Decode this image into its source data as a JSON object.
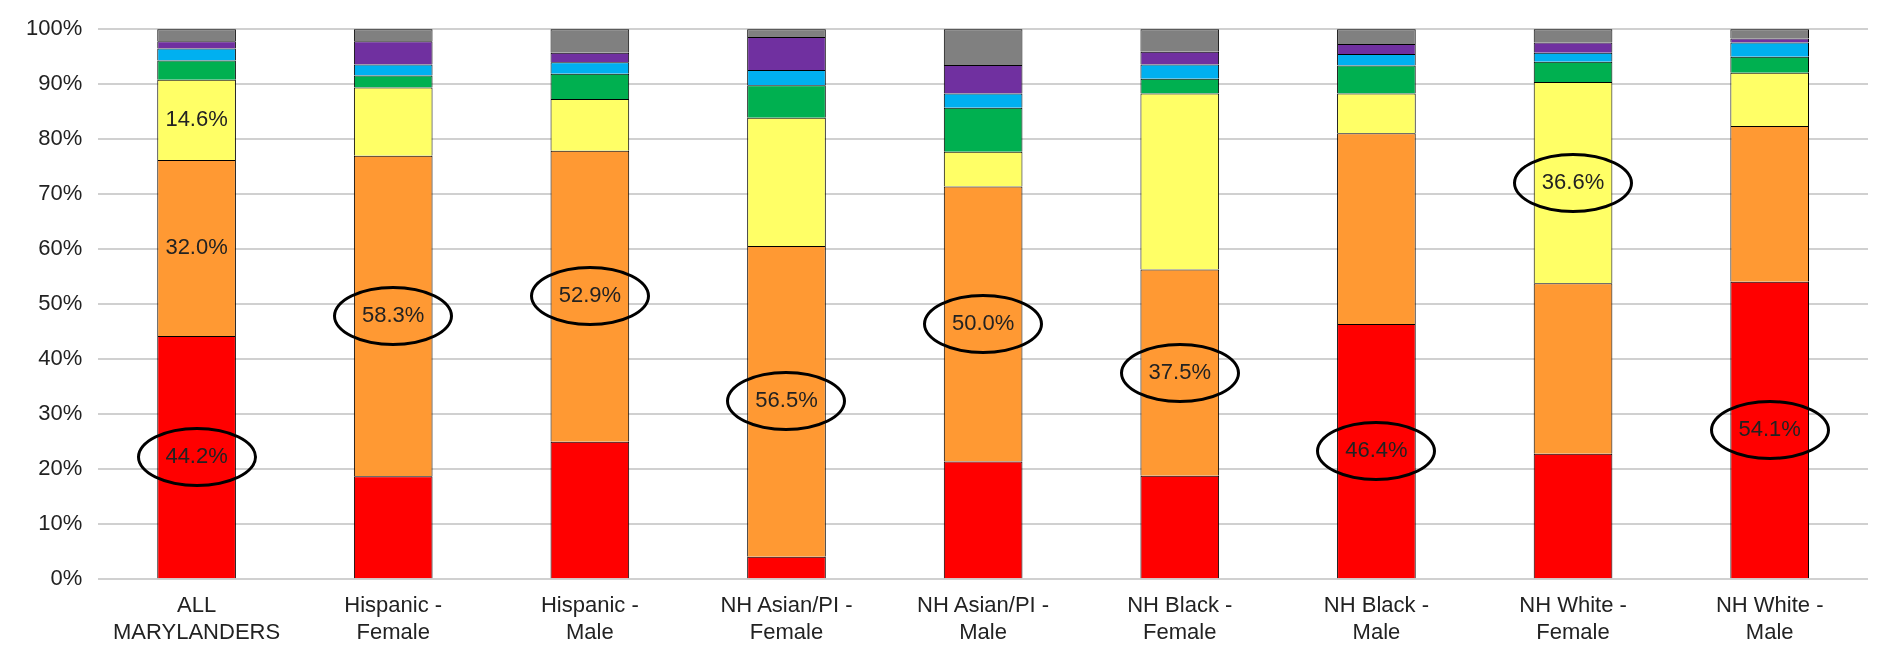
{
  "chart_data": {
    "type": "bar",
    "stacked": true,
    "categories": [
      "ALL MARYLANDERS",
      "Hispanic - Female",
      "Hispanic - Male",
      "NH Asian/PI - Female",
      "NH Asian/PI - Male",
      "NH Black - Female",
      "NH Black - Male",
      "NH White - Female",
      "NH White - Male"
    ],
    "series": [
      {
        "color": "#ff0000",
        "values": [
          44.2,
          18.7,
          25.0,
          4.1,
          21.4,
          18.8,
          46.4,
          22.8,
          54.1
        ],
        "value_labels": [
          "44.2%",
          null,
          null,
          null,
          null,
          null,
          "46.4%",
          null,
          "54.1%"
        ]
      },
      {
        "color": "#ff9933",
        "values": [
          32.0,
          58.3,
          52.9,
          56.5,
          50.0,
          37.5,
          34.7,
          31.0,
          28.3
        ],
        "value_labels": [
          "32.0%",
          "58.3%",
          "52.9%",
          "56.5%",
          "50.0%",
          "37.5%",
          null,
          null,
          null
        ]
      },
      {
        "color": "#ffff66",
        "values": [
          14.6,
          12.4,
          9.4,
          23.3,
          6.3,
          32.0,
          7.2,
          36.6,
          9.7
        ],
        "value_labels": [
          "14.6%",
          null,
          null,
          null,
          null,
          null,
          null,
          "36.6%",
          null
        ]
      },
      {
        "color": "#00b050",
        "values": [
          3.5,
          2.2,
          4.6,
          5.9,
          8.0,
          2.7,
          5.1,
          3.7,
          2.9
        ]
      },
      {
        "color": "#00b0f0",
        "values": [
          2.2,
          2.0,
          2.1,
          2.8,
          2.6,
          2.6,
          2.1,
          1.6,
          2.6
        ]
      },
      {
        "color": "#7030a0",
        "values": [
          1.3,
          4.2,
          1.7,
          6.0,
          5.2,
          2.3,
          1.8,
          1.9,
          0.7
        ]
      },
      {
        "color": "#808080",
        "values": [
          2.2,
          2.2,
          4.3,
          1.4,
          6.5,
          4.1,
          2.7,
          2.4,
          1.7
        ]
      }
    ],
    "ylim": [
      0,
      100
    ],
    "yticks": [
      {
        "value": 0,
        "label": "0%"
      },
      {
        "value": 10,
        "label": "10%"
      },
      {
        "value": 20,
        "label": "20%"
      },
      {
        "value": 30,
        "label": "30%"
      },
      {
        "value": 40,
        "label": "40%"
      },
      {
        "value": 50,
        "label": "50%"
      },
      {
        "value": 60,
        "label": "60%"
      },
      {
        "value": 70,
        "label": "70%"
      },
      {
        "value": 80,
        "label": "80%"
      },
      {
        "value": 90,
        "label": "90%"
      },
      {
        "value": 100,
        "label": "100%"
      }
    ],
    "grid": "y",
    "legend": false
  }
}
